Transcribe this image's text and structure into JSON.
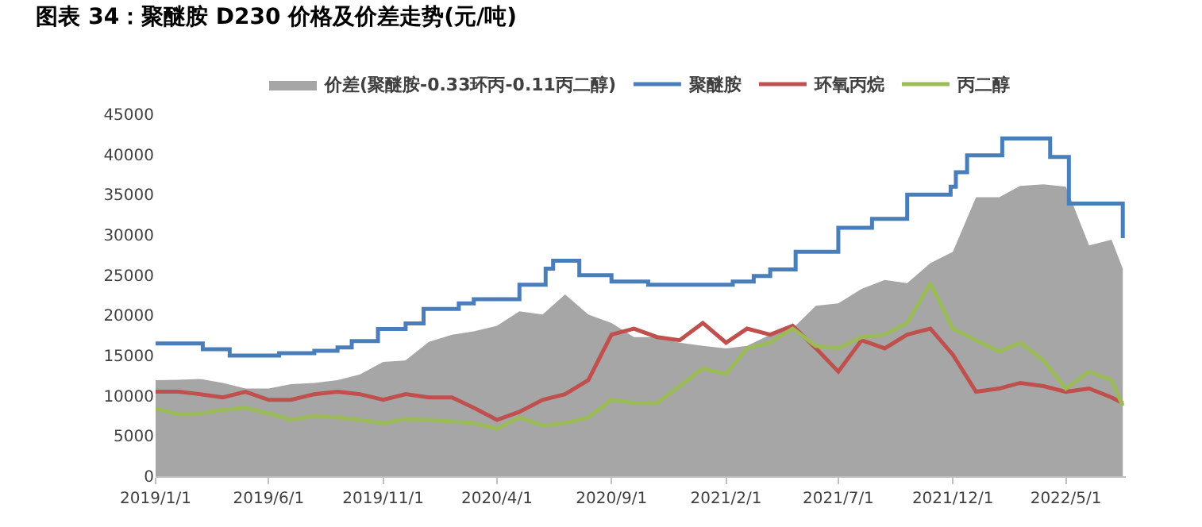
{
  "chart_data": {
    "type": "line",
    "title": "图表 34：聚醚胺 D230 价格及价差走势(元/吨)",
    "x": [
      "2019-01-01",
      "2019-02-01",
      "2019-03-01",
      "2019-04-01",
      "2019-05-01",
      "2019-06-01",
      "2019-07-01",
      "2019-08-01",
      "2019-09-01",
      "2019-10-01",
      "2019-11-01",
      "2019-12-01",
      "2020-01-01",
      "2020-02-01",
      "2020-03-01",
      "2020-04-01",
      "2020-05-01",
      "2020-06-01",
      "2020-07-01",
      "2020-08-01",
      "2020-09-01",
      "2020-10-01",
      "2020-11-01",
      "2020-12-01",
      "2021-01-01",
      "2021-02-01",
      "2021-03-01",
      "2021-04-01",
      "2021-05-01",
      "2021-06-01",
      "2021-07-01",
      "2021-08-01",
      "2021-09-01",
      "2021-10-01",
      "2021-11-01",
      "2021-12-01",
      "2022-01-01",
      "2022-02-01",
      "2022-03-01",
      "2022-04-01",
      "2022-05-01",
      "2022-06-01",
      "2022-07-01",
      "2022-07-16"
    ],
    "series": [
      {
        "name": "价差(聚醚胺-0.33环丙-0.11丙二醇)",
        "type": "area",
        "color": "#a6a6a6",
        "values": [
          11950,
          12000,
          12100,
          11600,
          10900,
          10900,
          11450,
          11600,
          11950,
          12650,
          14200,
          14400,
          16700,
          17600,
          18000,
          18700,
          20500,
          20100,
          22600,
          20100,
          19050,
          17300,
          17300,
          16600,
          16200,
          15900,
          16200,
          17600,
          18350,
          21200,
          21500,
          23300,
          24400,
          24000,
          26500,
          27900,
          34700,
          34700,
          36100,
          36300,
          36000,
          28700,
          29400,
          25800
        ]
      },
      {
        "name": "聚醚胺",
        "type": "step",
        "color": "#4a7ebb",
        "x": [
          "2019-01-01",
          "2019-03-05",
          "2019-04-10",
          "2019-06-15",
          "2019-08-01",
          "2019-09-01",
          "2019-09-20",
          "2019-10-25",
          "2019-12-01",
          "2019-12-25",
          "2020-02-10",
          "2020-03-01",
          "2020-05-01",
          "2020-06-05",
          "2020-06-15",
          "2020-07-20",
          "2020-09-01",
          "2020-10-20",
          "2021-02-10",
          "2021-03-10",
          "2021-04-01",
          "2021-05-05",
          "2021-07-01",
          "2021-08-15",
          "2021-10-01",
          "2021-11-28",
          "2021-12-05",
          "2021-12-20",
          "2022-02-05",
          "2022-04-10",
          "2022-05-05",
          "2022-07-12",
          "2022-07-16"
        ],
        "values": [
          16500,
          15800,
          15000,
          15300,
          15600,
          16000,
          16800,
          18300,
          19000,
          20800,
          21500,
          22000,
          23800,
          25800,
          26800,
          25000,
          24200,
          23800,
          24200,
          24900,
          25700,
          27900,
          30900,
          32000,
          35000,
          36000,
          37800,
          39900,
          42000,
          39700,
          33900,
          33900,
          29600
        ]
      },
      {
        "name": "环氧丙烷",
        "type": "line",
        "color": "#c0504d",
        "values": [
          10500,
          10500,
          10200,
          9800,
          10500,
          9500,
          9500,
          10200,
          10500,
          10200,
          9500,
          10200,
          9800,
          9800,
          8500,
          7000,
          8000,
          9500,
          10200,
          11950,
          17600,
          18350,
          17300,
          16900,
          19050,
          16600,
          18350,
          17600,
          18700,
          15900,
          13000,
          16900,
          15900,
          17600,
          18350,
          15100,
          10500,
          10900,
          11600,
          11200,
          10500,
          10900,
          9800,
          9100
        ]
      },
      {
        "name": "丙二醇",
        "type": "line",
        "color": "#9bbb59",
        "values": [
          8400,
          7700,
          7800,
          8250,
          8500,
          7800,
          7000,
          7500,
          7300,
          7000,
          6600,
          7100,
          7000,
          6800,
          6600,
          5900,
          7300,
          6300,
          6600,
          7300,
          9500,
          9100,
          9100,
          11200,
          13400,
          12700,
          15900,
          16600,
          18350,
          16200,
          15900,
          17300,
          17600,
          19050,
          24000,
          18350,
          16900,
          15500,
          16600,
          14400,
          10900,
          13000,
          11950,
          8750
        ]
      }
    ],
    "xlim": [
      "2019-01-01",
      "2022-07-20"
    ],
    "xticks": [
      {
        "value": "2019-01-01",
        "label": "2019/1/1"
      },
      {
        "value": "2019-06-01",
        "label": "2019/6/1"
      },
      {
        "value": "2019-11-01",
        "label": "2019/11/1"
      },
      {
        "value": "2020-04-01",
        "label": "2020/4/1"
      },
      {
        "value": "2020-09-01",
        "label": "2020/9/1"
      },
      {
        "value": "2021-02-01",
        "label": "2021/2/1"
      },
      {
        "value": "2021-07-01",
        "label": "2021/7/1"
      },
      {
        "value": "2021-12-01",
        "label": "2021/12/1"
      },
      {
        "value": "2022-05-01",
        "label": "2022/5/1"
      }
    ],
    "ylim": [
      0,
      45000
    ],
    "yticks": [
      0,
      5000,
      10000,
      15000,
      20000,
      25000,
      30000,
      35000,
      40000,
      45000
    ],
    "legend": "top",
    "grid": false
  }
}
